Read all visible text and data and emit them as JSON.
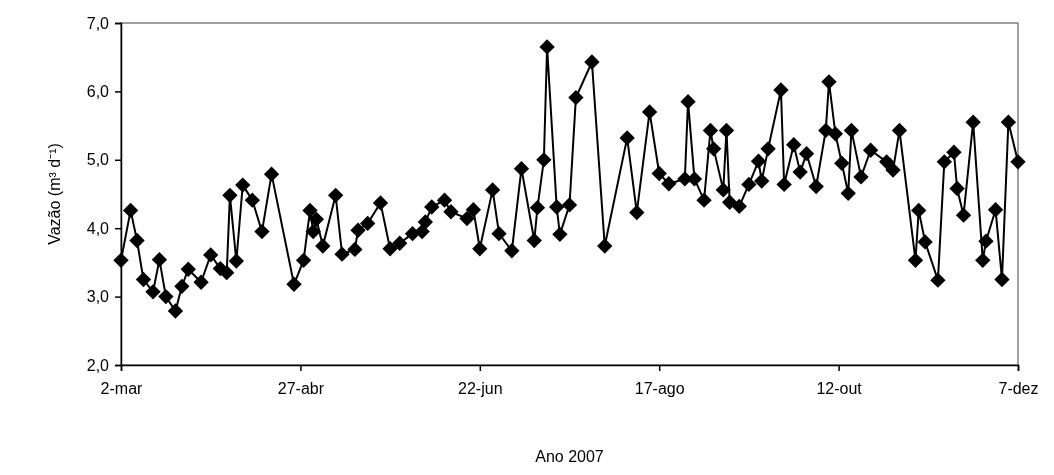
{
  "chart_data": {
    "type": "line",
    "xlabel": "Ano 2007",
    "ylabel": "Vazão (m³ d⁻¹)",
    "marker": "diamond",
    "line_style": "solid",
    "xlim": [
      "2007-03-02",
      "2007-12-07"
    ],
    "xticks": [
      {
        "value": "2007-03-02",
        "label": "2-mar"
      },
      {
        "value": "2007-04-27",
        "label": "27-abr"
      },
      {
        "value": "2007-06-22",
        "label": "22-jun"
      },
      {
        "value": "2007-08-17",
        "label": "17-ago"
      },
      {
        "value": "2007-10-12",
        "label": "12-out"
      },
      {
        "value": "2007-12-07",
        "label": "7-dez"
      }
    ],
    "ylim": [
      2,
      7
    ],
    "yticks": [
      {
        "value": 2,
        "label": "2,0"
      },
      {
        "value": 3,
        "label": "3,0"
      },
      {
        "value": 4,
        "label": "4,0"
      },
      {
        "value": 5,
        "label": "5,0"
      },
      {
        "value": 6,
        "label": "6,0"
      },
      {
        "value": 7,
        "label": "7,0"
      }
    ],
    "series": [
      {
        "color": "#000000",
        "x": [
          "2007-03-02",
          "2007-03-05",
          "2007-03-07",
          "2007-03-09",
          "2007-03-12",
          "2007-03-14",
          "2007-03-16",
          "2007-03-19",
          "2007-03-21",
          "2007-03-23",
          "2007-03-27",
          "2007-03-30",
          "2007-04-02",
          "2007-04-04",
          "2007-04-05",
          "2007-04-07",
          "2007-04-09",
          "2007-04-12",
          "2007-04-15",
          "2007-04-18",
          "2007-04-25",
          "2007-04-28",
          "2007-04-30",
          "2007-05-01",
          "2007-05-02",
          "2007-05-04",
          "2007-05-08",
          "2007-05-10",
          "2007-05-14",
          "2007-05-15",
          "2007-05-18",
          "2007-05-22",
          "2007-05-25",
          "2007-05-28",
          "2007-06-01",
          "2007-06-04",
          "2007-06-05",
          "2007-06-07",
          "2007-06-11",
          "2007-06-13",
          "2007-06-18",
          "2007-06-20",
          "2007-06-22",
          "2007-06-26",
          "2007-06-28",
          "2007-07-02",
          "2007-07-05",
          "2007-07-09",
          "2007-07-10",
          "2007-07-12",
          "2007-07-13",
          "2007-07-16",
          "2007-07-17",
          "2007-07-20",
          "2007-07-22",
          "2007-07-27",
          "2007-07-31",
          "2007-08-07",
          "2007-08-10",
          "2007-08-14",
          "2007-08-17",
          "2007-08-20",
          "2007-08-25",
          "2007-08-26",
          "2007-08-28",
          "2007-08-31",
          "2007-09-02",
          "2007-09-03",
          "2007-09-06",
          "2007-09-07",
          "2007-09-08",
          "2007-09-11",
          "2007-09-14",
          "2007-09-17",
          "2007-09-18",
          "2007-09-20",
          "2007-09-24",
          "2007-09-25",
          "2007-09-28",
          "2007-09-30",
          "2007-10-02",
          "2007-10-05",
          "2007-10-08",
          "2007-10-09",
          "2007-10-11",
          "2007-10-13",
          "2007-10-15",
          "2007-10-16",
          "2007-10-19",
          "2007-10-22",
          "2007-10-27",
          "2007-10-29",
          "2007-10-31",
          "2007-11-05",
          "2007-11-06",
          "2007-11-08",
          "2007-11-12",
          "2007-11-14",
          "2007-11-17",
          "2007-11-18",
          "2007-11-20",
          "2007-11-23",
          "2007-11-26",
          "2007-11-27",
          "2007-11-30",
          "2007-12-02",
          "2007-12-04",
          "2007-12-07"
        ],
        "values": [
          3.53,
          4.26,
          3.82,
          3.25,
          3.07,
          3.54,
          3.0,
          2.79,
          3.15,
          3.4,
          3.21,
          3.61,
          3.41,
          3.35,
          4.48,
          3.52,
          4.63,
          4.41,
          3.95,
          4.79,
          3.18,
          3.53,
          4.26,
          3.95,
          4.13,
          3.74,
          4.48,
          3.62,
          3.69,
          3.97,
          4.07,
          4.37,
          3.7,
          3.78,
          3.92,
          3.95,
          4.09,
          4.31,
          4.41,
          4.24,
          4.14,
          4.27,
          3.7,
          4.56,
          3.92,
          3.67,
          4.87,
          3.82,
          4.3,
          5.0,
          6.65,
          4.31,
          3.91,
          4.34,
          5.91,
          6.43,
          3.74,
          5.32,
          4.23,
          5.7,
          4.8,
          4.65,
          4.72,
          5.85,
          4.72,
          4.41,
          5.43,
          5.16,
          4.56,
          5.43,
          4.38,
          4.32,
          4.64,
          4.98,
          4.69,
          5.16,
          6.02,
          4.64,
          5.22,
          4.82,
          5.09,
          4.61,
          5.43,
          6.14,
          5.38,
          4.95,
          4.51,
          5.43,
          4.75,
          5.14,
          4.97,
          4.85,
          5.43,
          3.53,
          4.26,
          3.8,
          3.24,
          4.97,
          5.11,
          4.58,
          4.19,
          5.55,
          3.53,
          3.81,
          4.27,
          3.25,
          5.55,
          4.97
        ]
      }
    ]
  }
}
